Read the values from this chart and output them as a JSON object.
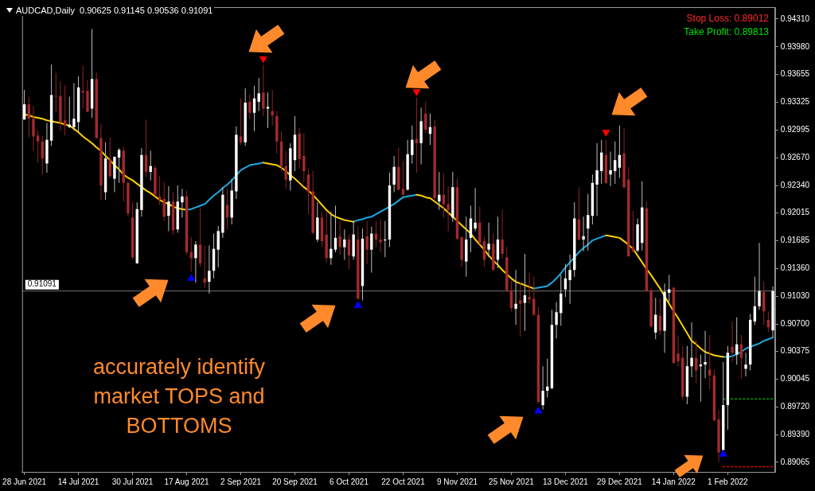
{
  "chart_data": {
    "type": "candlestick",
    "title": "AUDCAD,Daily  0.90625 0.91145 0.90536 0.91091",
    "categories": [
      "28 Jun 2021",
      null,
      null,
      null,
      null,
      null,
      null,
      null,
      null,
      null,
      null,
      null,
      "14 Jul 2021",
      null,
      null,
      null,
      null,
      null,
      null,
      null,
      null,
      null,
      null,
      null,
      "30 Jul 2021",
      null,
      null,
      null,
      null,
      null,
      null,
      null,
      null,
      null,
      null,
      null,
      "17 Aug 2021",
      null,
      null,
      null,
      null,
      null,
      null,
      null,
      null,
      null,
      null,
      null,
      "2 Sep 2021",
      null,
      null,
      null,
      null,
      null,
      null,
      null,
      null,
      null,
      null,
      null,
      "20 Sep 2021",
      null,
      null,
      null,
      null,
      null,
      null,
      null,
      null,
      null,
      null,
      null,
      "6 Oct 2021",
      null,
      null,
      null,
      null,
      null,
      null,
      null,
      null,
      null,
      null,
      null,
      "22 Oct 2021",
      null,
      null,
      null,
      null,
      null,
      null,
      null,
      null,
      null,
      null,
      null,
      "9 Nov 2021",
      null,
      null,
      null,
      null,
      null,
      null,
      null,
      null,
      null,
      null,
      null,
      "25 Nov 2021",
      null,
      null,
      null,
      null,
      null,
      null,
      null,
      null,
      null,
      null,
      null,
      "13 Dec 2021",
      null,
      null,
      null,
      null,
      null,
      null,
      null,
      null,
      null,
      null,
      null,
      "29 Dec 2021",
      null,
      null,
      null,
      null,
      null,
      null,
      null,
      null,
      null,
      null,
      null,
      "14 Jan 2022",
      null,
      null,
      null,
      null,
      null,
      null,
      null,
      null,
      null,
      null,
      null,
      "1 Feb 2022",
      null,
      null,
      null,
      null,
      null,
      null,
      null,
      null,
      null,
      null
    ],
    "ohlc": [
      [
        0.9312,
        0.9347,
        0.9312,
        0.933
      ],
      [
        0.933,
        0.9339,
        0.9291,
        0.9313
      ],
      [
        0.9313,
        0.9328,
        0.9275,
        0.9292
      ],
      [
        0.9293,
        0.9299,
        0.9261,
        0.9286
      ],
      [
        0.9286,
        0.9293,
        0.9247,
        0.9266
      ],
      [
        0.926,
        0.9308,
        0.9249,
        0.9288
      ],
      [
        0.9287,
        0.9377,
        0.9281,
        0.9341
      ],
      [
        0.934,
        0.9367,
        0.9321,
        0.9339
      ],
      [
        0.934,
        0.9357,
        0.9299,
        0.9309
      ],
      [
        0.9311,
        0.9353,
        0.9293,
        0.9305
      ],
      [
        0.9303,
        0.9339,
        0.9302,
        0.9306
      ],
      [
        0.9303,
        0.9355,
        0.9299,
        0.9313
      ],
      [
        0.9309,
        0.9363,
        0.9298,
        0.935
      ],
      [
        0.9346,
        0.9376,
        0.9325,
        0.9344
      ],
      [
        0.9346,
        0.9359,
        0.9321,
        0.9321
      ],
      [
        0.9325,
        0.9419,
        0.9314,
        0.936
      ],
      [
        0.936,
        0.9368,
        0.929,
        0.929
      ],
      [
        0.929,
        0.9306,
        0.9217,
        0.9234
      ],
      [
        0.9226,
        0.9285,
        0.9217,
        0.9266
      ],
      [
        0.9265,
        0.9291,
        0.9243,
        0.9245
      ],
      [
        0.9242,
        0.9268,
        0.9226,
        0.9268
      ],
      [
        0.9267,
        0.9278,
        0.9237,
        0.9276
      ],
      [
        0.9275,
        0.928,
        0.9215,
        0.9237
      ],
      [
        0.9237,
        0.9239,
        0.9197,
        0.9201
      ],
      [
        0.9196,
        0.9214,
        0.9146,
        0.9149
      ],
      [
        0.9142,
        0.9214,
        0.9141,
        0.9206
      ],
      [
        0.9205,
        0.9278,
        0.9197,
        0.927
      ],
      [
        0.927,
        0.9312,
        0.9244,
        0.925
      ],
      [
        0.925,
        0.9275,
        0.924,
        0.9257
      ],
      [
        0.9255,
        0.9258,
        0.9221,
        0.9223
      ],
      [
        0.9221,
        0.9245,
        0.9211,
        0.9217
      ],
      [
        0.9218,
        0.9238,
        0.9192,
        0.9197
      ],
      [
        0.9198,
        0.9233,
        0.918,
        0.9215
      ],
      [
        0.9215,
        0.9226,
        0.9176,
        0.9181
      ],
      [
        0.9182,
        0.9234,
        0.9178,
        0.9215
      ],
      [
        0.9214,
        0.923,
        0.9196,
        0.9221
      ],
      [
        0.9221,
        0.9228,
        0.9152,
        0.9155
      ],
      [
        0.9155,
        0.9173,
        0.9132,
        0.9148
      ],
      [
        0.9148,
        0.9168,
        0.9119,
        0.9164
      ],
      [
        0.9164,
        0.9208,
        0.9138,
        0.9142
      ],
      [
        0.9124,
        0.9163,
        0.9113,
        0.9119
      ],
      [
        0.912,
        0.9163,
        0.9106,
        0.9133
      ],
      [
        0.9133,
        0.9177,
        0.9124,
        0.9159
      ],
      [
        0.9158,
        0.9186,
        0.9137,
        0.918
      ],
      [
        0.9178,
        0.9232,
        0.9172,
        0.9223
      ],
      [
        0.9211,
        0.923,
        0.9182,
        0.9196
      ],
      [
        0.9196,
        0.9242,
        0.9188,
        0.9228
      ],
      [
        0.9227,
        0.9304,
        0.9218,
        0.9294
      ],
      [
        0.9292,
        0.9337,
        0.9282,
        0.9285
      ],
      [
        0.9285,
        0.9349,
        0.9281,
        0.9332
      ],
      [
        0.9333,
        0.9342,
        0.9313,
        0.932
      ],
      [
        0.932,
        0.9352,
        0.9298,
        0.9337
      ],
      [
        0.9333,
        0.9361,
        0.9322,
        0.9343
      ],
      [
        0.9344,
        0.9377,
        0.9316,
        0.9325
      ],
      [
        0.9325,
        0.9344,
        0.9302,
        0.9327
      ],
      [
        0.9322,
        0.9347,
        0.9305,
        0.9317
      ],
      [
        0.9316,
        0.9322,
        0.9272,
        0.9286
      ],
      [
        0.9286,
        0.9298,
        0.9251,
        0.9257
      ],
      [
        0.9257,
        0.9275,
        0.923,
        0.9241
      ],
      [
        0.924,
        0.9284,
        0.9228,
        0.9278
      ],
      [
        0.9264,
        0.9316,
        0.9251,
        0.9294
      ],
      [
        0.9295,
        0.9302,
        0.9254,
        0.9265
      ],
      [
        0.9269,
        0.9296,
        0.9238,
        0.9251
      ],
      [
        0.9247,
        0.9254,
        0.92,
        0.9226
      ],
      [
        0.9227,
        0.9251,
        0.9176,
        0.9178
      ],
      [
        0.917,
        0.9214,
        0.9167,
        0.9196
      ],
      [
        0.9196,
        0.9203,
        0.9161,
        0.9168
      ],
      [
        0.9176,
        0.9203,
        0.9143,
        0.9148
      ],
      [
        0.9148,
        0.9203,
        0.914,
        0.9159
      ],
      [
        0.9158,
        0.921,
        0.9155,
        0.9172
      ],
      [
        0.9174,
        0.9192,
        0.9152,
        0.9161
      ],
      [
        0.9161,
        0.9182,
        0.9146,
        0.917
      ],
      [
        0.917,
        0.9176,
        0.9135,
        0.9151
      ],
      [
        0.915,
        0.9192,
        0.9146,
        0.9176
      ],
      [
        0.917,
        0.9186,
        0.9099,
        0.91
      ],
      [
        0.9115,
        0.9183,
        0.9098,
        0.9171
      ],
      [
        0.9174,
        0.9192,
        0.9141,
        0.9158
      ],
      [
        0.9158,
        0.9185,
        0.9131,
        0.9177
      ],
      [
        0.9177,
        0.9192,
        0.9161,
        0.917
      ],
      [
        0.917,
        0.9194,
        0.9155,
        0.9167
      ],
      [
        0.9169,
        0.9192,
        0.9149,
        0.917
      ],
      [
        0.917,
        0.9249,
        0.9161,
        0.9234
      ],
      [
        0.9235,
        0.9269,
        0.9226,
        0.9256
      ],
      [
        0.9256,
        0.9279,
        0.9228,
        0.9229
      ],
      [
        0.923,
        0.9263,
        0.9221,
        0.9223
      ],
      [
        0.9229,
        0.9288,
        0.9228,
        0.9271
      ],
      [
        0.927,
        0.9305,
        0.926,
        0.9288
      ],
      [
        0.9289,
        0.9338,
        0.9249,
        0.9284
      ],
      [
        0.9284,
        0.9326,
        0.9259,
        0.931
      ],
      [
        0.9319,
        0.9333,
        0.9296,
        0.93
      ],
      [
        0.9295,
        0.9319,
        0.9282,
        0.9303
      ],
      [
        0.9304,
        0.9312,
        0.9217,
        0.9219
      ],
      [
        0.9215,
        0.925,
        0.9205,
        0.9223
      ],
      [
        0.9223,
        0.9248,
        0.9196,
        0.9212
      ],
      [
        0.9212,
        0.9233,
        0.918,
        0.9205
      ],
      [
        0.9196,
        0.925,
        0.9191,
        0.9232
      ],
      [
        0.9232,
        0.9242,
        0.917,
        0.9171
      ],
      [
        0.9173,
        0.9173,
        0.9138,
        0.9146
      ],
      [
        0.9144,
        0.9197,
        0.9126,
        0.917
      ],
      [
        0.9172,
        0.921,
        0.9155,
        0.9195
      ],
      [
        0.9183,
        0.9231,
        0.918,
        0.919
      ],
      [
        0.919,
        0.9209,
        0.9164,
        0.9166
      ],
      [
        0.9168,
        0.9173,
        0.9138,
        0.9146
      ],
      [
        0.9158,
        0.919,
        0.9149,
        0.9165
      ],
      [
        0.9165,
        0.9177,
        0.9133,
        0.9134
      ],
      [
        0.9146,
        0.9197,
        0.9136,
        0.917
      ],
      [
        0.917,
        0.9205,
        0.9147,
        0.9153
      ],
      [
        0.9149,
        0.9161,
        0.9108,
        0.911
      ],
      [
        0.911,
        0.9121,
        0.9085,
        0.9089
      ],
      [
        0.9088,
        0.9134,
        0.9069,
        0.9094
      ],
      [
        0.9098,
        0.9119,
        0.9055,
        0.9094
      ],
      [
        0.9095,
        0.9153,
        0.9062,
        0.9104
      ],
      [
        0.9102,
        0.9131,
        0.9094,
        0.9099
      ],
      [
        0.91,
        0.9126,
        0.908,
        0.9081
      ],
      [
        0.9081,
        0.909,
        0.8976,
        0.8978
      ],
      [
        0.8974,
        0.902,
        0.8969,
        0.8991
      ],
      [
        0.8991,
        0.9029,
        0.8983,
        0.8996
      ],
      [
        0.8994,
        0.9087,
        0.8993,
        0.9069
      ],
      [
        0.9069,
        0.9096,
        0.9053,
        0.9084
      ],
      [
        0.9083,
        0.9128,
        0.9068,
        0.9106
      ],
      [
        0.9111,
        0.9141,
        0.9102,
        0.9124
      ],
      [
        0.9122,
        0.9152,
        0.9094,
        0.9134
      ],
      [
        0.9134,
        0.9214,
        0.9126,
        0.9195
      ],
      [
        0.9194,
        0.9232,
        0.9169,
        0.917
      ],
      [
        0.917,
        0.9197,
        0.9156,
        0.9174
      ],
      [
        0.9183,
        0.9224,
        0.9157,
        0.9199
      ],
      [
        0.9198,
        0.9247,
        0.9188,
        0.9237
      ],
      [
        0.9235,
        0.9284,
        0.9198,
        0.9252
      ],
      [
        0.9251,
        0.9288,
        0.9236,
        0.9273
      ],
      [
        0.927,
        0.9288,
        0.9236,
        0.9237
      ],
      [
        0.9247,
        0.9274,
        0.9233,
        0.9252
      ],
      [
        0.9251,
        0.9286,
        0.9236,
        0.9264
      ],
      [
        0.9255,
        0.9305,
        0.9243,
        0.927
      ],
      [
        0.9272,
        0.9302,
        0.923,
        0.9232
      ],
      [
        0.9241,
        0.9256,
        0.915,
        0.915
      ],
      [
        0.9161,
        0.9204,
        0.9155,
        0.9156
      ],
      [
        0.9157,
        0.9195,
        0.9155,
        0.9188
      ],
      [
        0.9166,
        0.9239,
        0.9157,
        0.9208
      ],
      [
        0.9207,
        0.9215,
        0.9108,
        0.9109
      ],
      [
        0.911,
        0.9112,
        0.9066,
        0.9067
      ],
      [
        0.906,
        0.9101,
        0.9052,
        0.9081
      ],
      [
        0.908,
        0.91,
        0.9057,
        0.9062
      ],
      [
        0.9062,
        0.9118,
        0.9036,
        0.9108
      ],
      [
        0.9107,
        0.9128,
        0.9096,
        0.9111
      ],
      [
        0.9113,
        0.9114,
        0.9023,
        0.9024
      ],
      [
        0.9035,
        0.9056,
        0.902,
        0.9026
      ],
      [
        0.903,
        0.9044,
        0.898,
        0.8984
      ],
      [
        0.8984,
        0.9044,
        0.8975,
        0.902
      ],
      [
        0.902,
        0.9072,
        0.9007,
        0.903
      ],
      [
        0.903,
        0.9051,
        0.9,
        0.9015
      ],
      [
        0.902,
        0.9034,
        0.8978,
        0.9022
      ],
      [
        0.9022,
        0.9062,
        0.9006,
        0.9025
      ],
      [
        0.9016,
        0.9057,
        0.8993,
        0.9009
      ],
      [
        0.9009,
        0.9016,
        0.8955,
        0.8956
      ],
      [
        0.8957,
        0.8968,
        0.8907,
        0.8918
      ],
      [
        0.8921,
        0.9025,
        0.8921,
        0.8974
      ],
      [
        0.8974,
        0.9044,
        0.8945,
        0.9036
      ],
      [
        0.9043,
        0.9073,
        0.9025,
        0.9036
      ],
      [
        0.9034,
        0.9078,
        0.9022,
        0.9046
      ],
      [
        0.9046,
        0.9057,
        0.9005,
        0.903
      ],
      [
        0.9017,
        0.9036,
        0.9008,
        0.9022
      ],
      [
        0.9022,
        0.9082,
        0.9015,
        0.9075
      ],
      [
        0.9073,
        0.9126,
        0.9069,
        0.9091
      ],
      [
        0.9091,
        0.9166,
        0.9087,
        0.9109
      ],
      [
        0.9108,
        0.912,
        0.9069,
        0.9085
      ],
      [
        0.9075,
        0.9085,
        0.9061,
        0.9066
      ],
      [
        0.90625,
        0.91145,
        0.90536,
        0.91091
      ]
    ],
    "series": [
      {
        "type": "line",
        "color": "#ffd000",
        "values": [
          0.9318,
          0.9317,
          0.9315,
          0.9314,
          0.9313,
          0.9311,
          0.931,
          0.9309,
          0.9308,
          0.9306,
          0.9305,
          0.9301,
          0.9297,
          0.9292,
          0.9288,
          0.9284,
          0.9279,
          0.9275,
          0.9269,
          0.9264,
          0.9258,
          0.9253,
          0.9247,
          0.9243,
          0.924,
          0.9236,
          0.9232,
          0.9228,
          0.9225,
          0.9221,
          0.9217,
          0.9214,
          0.9212,
          0.9209,
          0.9207,
          0.9206,
          0.9205,
          null,
          null,
          null,
          null,
          null,
          null,
          null,
          null,
          null,
          null,
          null,
          null,
          null,
          null,
          null,
          null,
          0.9261,
          0.926,
          0.9259,
          0.9258,
          0.9255,
          0.9251,
          0.9246,
          0.9242,
          0.9237,
          0.9232,
          0.9228,
          0.9223,
          0.9217,
          0.9211,
          0.9205,
          0.92,
          0.9197,
          0.9195,
          0.9193,
          0.9192,
          0.9191,
          null,
          null,
          null,
          null,
          null,
          null,
          null,
          null,
          null,
          null,
          null,
          null,
          null,
          0.9223,
          0.9222,
          0.922,
          0.9219,
          0.9215,
          0.9211,
          0.9207,
          0.9202,
          0.9197,
          0.9192,
          0.9187,
          0.9182,
          0.9177,
          0.917,
          0.9164,
          0.9158,
          0.9151,
          0.9145,
          0.914,
          0.9134,
          0.9129,
          0.9124,
          0.912,
          0.9118,
          0.9116,
          0.9114,
          0.9112,
          null,
          null,
          null,
          null,
          null,
          null,
          null,
          null,
          null,
          null,
          null,
          null,
          null,
          null,
          null,
          0.9175,
          0.9174,
          0.9173,
          0.9172,
          0.9168,
          0.9164,
          0.9159,
          0.9151,
          0.9143,
          0.9135,
          0.9128,
          0.912,
          0.9112,
          0.9103,
          0.9094,
          0.9085,
          0.9077,
          0.9068,
          0.9059,
          0.905,
          0.9046,
          0.9041,
          0.9037,
          0.9035,
          0.9033,
          0.9032,
          0.9031,
          null,
          null,
          null,
          null,
          null,
          null,
          null,
          null,
          null,
          null,
          null
        ]
      },
      {
        "type": "line",
        "color": "#1ea8e0",
        "values": [
          null,
          null,
          null,
          null,
          null,
          null,
          null,
          null,
          null,
          null,
          null,
          null,
          null,
          null,
          null,
          null,
          null,
          null,
          null,
          null,
          null,
          null,
          null,
          null,
          null,
          null,
          null,
          null,
          null,
          null,
          null,
          null,
          null,
          null,
          null,
          null,
          0.9205,
          0.9206,
          0.9208,
          0.921,
          0.9212,
          0.9217,
          0.9222,
          0.9226,
          0.9231,
          0.9235,
          0.924,
          0.9246,
          0.9252,
          0.9255,
          0.9258,
          0.9259,
          0.926,
          0.9261,
          null,
          null,
          null,
          null,
          null,
          null,
          null,
          null,
          null,
          null,
          null,
          null,
          null,
          null,
          null,
          null,
          null,
          null,
          null,
          0.9191,
          0.9193,
          0.9194,
          0.9196,
          0.9197,
          0.92,
          0.9203,
          0.9206,
          0.9209,
          0.9212,
          0.9216,
          0.922,
          0.9221,
          0.9222,
          0.9223,
          null,
          null,
          null,
          null,
          null,
          null,
          null,
          null,
          null,
          null,
          null,
          null,
          null,
          null,
          null,
          null,
          null,
          null,
          null,
          null,
          null,
          null,
          null,
          null,
          null,
          0.9112,
          0.9113,
          0.9114,
          0.9115,
          0.9119,
          0.9124,
          0.913,
          0.9137,
          0.9143,
          0.9149,
          0.9155,
          0.916,
          0.9164,
          0.9169,
          0.9171,
          0.9173,
          0.9175,
          null,
          null,
          null,
          null,
          null,
          null,
          null,
          null,
          null,
          null,
          null,
          null,
          null,
          null,
          null,
          null,
          null,
          null,
          null,
          null,
          null,
          null,
          null,
          null,
          null,
          0.9031,
          0.9031,
          0.9032,
          0.9034,
          0.9037,
          0.9041,
          0.9043,
          0.9045,
          0.9047,
          0.905,
          0.9052,
          0.9054
        ]
      },
      {
        "type": "scatter",
        "color": "#ff0000",
        "marker": "triangle",
        "values": [
          null,
          null,
          null,
          null,
          null,
          null,
          null,
          null,
          null,
          null,
          null,
          null,
          null,
          null,
          null,
          null,
          null,
          null,
          null,
          null,
          null,
          null,
          null,
          null,
          null,
          null,
          null,
          null,
          null,
          null,
          null,
          null,
          null,
          null,
          null,
          null,
          null,
          null,
          null,
          null,
          null,
          null,
          null,
          null,
          null,
          null,
          null,
          null,
          null,
          null,
          null,
          null,
          null,
          0.9384,
          null,
          null,
          null,
          null,
          null,
          null,
          null,
          null,
          null,
          null,
          null,
          null,
          null,
          null,
          null,
          null,
          null,
          null,
          null,
          null,
          null,
          null,
          null,
          null,
          null,
          null,
          null,
          null,
          null,
          null,
          null,
          null,
          null,
          0.9345,
          null,
          null,
          null,
          null,
          null,
          null,
          null,
          null,
          null,
          null,
          null,
          null,
          null,
          null,
          null,
          null,
          null,
          null,
          null,
          null,
          null,
          null,
          null,
          null,
          null,
          null,
          null,
          null,
          null,
          null,
          null,
          null,
          null,
          null,
          null,
          null,
          null,
          null,
          null,
          null,
          null,
          0.9297,
          null,
          null,
          null,
          null,
          null,
          null,
          null,
          null,
          null,
          null,
          null,
          null,
          null,
          null,
          null,
          null,
          null,
          null,
          null,
          null,
          null,
          null,
          null,
          null,
          null,
          null,
          null,
          null,
          null,
          null,
          null,
          null,
          null,
          null,
          null,
          null,
          null
        ]
      },
      {
        "type": "scatter",
        "color": "#0000ff",
        "marker": "triangle",
        "values": [
          null,
          null,
          null,
          null,
          null,
          null,
          null,
          null,
          null,
          null,
          null,
          null,
          null,
          null,
          null,
          null,
          null,
          null,
          null,
          null,
          null,
          null,
          null,
          null,
          null,
          null,
          null,
          null,
          null,
          null,
          null,
          null,
          null,
          null,
          null,
          null,
          null,
          0.9124,
          null,
          null,
          null,
          null,
          null,
          null,
          null,
          null,
          null,
          null,
          null,
          null,
          null,
          null,
          null,
          null,
          null,
          null,
          null,
          null,
          null,
          null,
          null,
          null,
          null,
          null,
          null,
          null,
          null,
          null,
          null,
          null,
          null,
          null,
          null,
          null,
          0.9092,
          null,
          null,
          null,
          null,
          null,
          null,
          null,
          null,
          null,
          null,
          null,
          null,
          null,
          null,
          null,
          null,
          null,
          null,
          null,
          null,
          null,
          null,
          null,
          null,
          null,
          null,
          null,
          null,
          null,
          null,
          null,
          null,
          null,
          null,
          null,
          null,
          null,
          null,
          null,
          0.8967,
          null,
          null,
          null,
          null,
          null,
          null,
          null,
          null,
          null,
          null,
          null,
          null,
          null,
          null,
          null,
          null,
          null,
          null,
          null,
          null,
          null,
          null,
          null,
          null,
          null,
          null,
          null,
          null,
          null,
          null,
          null,
          null,
          null,
          null,
          null,
          null,
          null,
          null,
          null,
          null,
          0.8916,
          null,
          null,
          null,
          null,
          null,
          null,
          null,
          null,
          null,
          null,
          null
        ]
      },
      {
        "type": "line",
        "color": "#00a000",
        "line_style": "dotted",
        "values": [
          null,
          null,
          null,
          null,
          null,
          null,
          null,
          null,
          null,
          null,
          null,
          null,
          null,
          null,
          null,
          null,
          null,
          null,
          null,
          null,
          null,
          null,
          null,
          null,
          null,
          null,
          null,
          null,
          null,
          null,
          null,
          null,
          null,
          null,
          null,
          null,
          null,
          null,
          null,
          null,
          null,
          null,
          null,
          null,
          null,
          null,
          null,
          null,
          null,
          null,
          null,
          null,
          null,
          null,
          null,
          null,
          null,
          null,
          null,
          null,
          null,
          null,
          null,
          null,
          null,
          null,
          null,
          null,
          null,
          null,
          null,
          null,
          null,
          null,
          null,
          null,
          null,
          null,
          null,
          null,
          null,
          null,
          null,
          null,
          null,
          null,
          null,
          null,
          null,
          null,
          null,
          null,
          null,
          null,
          null,
          null,
          null,
          null,
          null,
          null,
          null,
          null,
          null,
          null,
          null,
          null,
          null,
          null,
          null,
          null,
          null,
          null,
          null,
          null,
          null,
          null,
          null,
          null,
          null,
          null,
          null,
          null,
          null,
          null,
          null,
          null,
          null,
          null,
          null,
          null,
          null,
          null,
          null,
          null,
          null,
          null,
          null,
          null,
          null,
          null,
          null,
          null,
          null,
          null,
          null,
          null,
          null,
          null,
          null,
          null,
          null,
          null,
          null,
          null,
          null,
          0.89813,
          0.89813,
          0.89813,
          0.89813,
          0.89813,
          0.89813,
          0.89813,
          0.89813,
          0.89813,
          0.89813,
          0.89813,
          0.89813
        ]
      },
      {
        "type": "line",
        "color": "#e00000",
        "line_style": "dotted",
        "values": [
          null,
          null,
          null,
          null,
          null,
          null,
          null,
          null,
          null,
          null,
          null,
          null,
          null,
          null,
          null,
          null,
          null,
          null,
          null,
          null,
          null,
          null,
          null,
          null,
          null,
          null,
          null,
          null,
          null,
          null,
          null,
          null,
          null,
          null,
          null,
          null,
          null,
          null,
          null,
          null,
          null,
          null,
          null,
          null,
          null,
          null,
          null,
          null,
          null,
          null,
          null,
          null,
          null,
          null,
          null,
          null,
          null,
          null,
          null,
          null,
          null,
          null,
          null,
          null,
          null,
          null,
          null,
          null,
          null,
          null,
          null,
          null,
          null,
          null,
          null,
          null,
          null,
          null,
          null,
          null,
          null,
          null,
          null,
          null,
          null,
          null,
          null,
          null,
          null,
          null,
          null,
          null,
          null,
          null,
          null,
          null,
          null,
          null,
          null,
          null,
          null,
          null,
          null,
          null,
          null,
          null,
          null,
          null,
          null,
          null,
          null,
          null,
          null,
          null,
          null,
          null,
          null,
          null,
          null,
          null,
          null,
          null,
          null,
          null,
          null,
          null,
          null,
          null,
          null,
          null,
          null,
          null,
          null,
          null,
          null,
          null,
          null,
          null,
          null,
          null,
          null,
          null,
          null,
          null,
          null,
          null,
          null,
          null,
          null,
          null,
          null,
          null,
          null,
          null,
          null,
          0.89012,
          0.89012,
          0.89012,
          0.89012,
          0.89012,
          0.89012,
          0.89012,
          0.89012,
          0.89012,
          0.89012,
          0.89012,
          0.89012
        ]
      }
    ],
    "ylim": [
      0.8895,
      0.9445
    ],
    "yticks": [
      {
        "value": 0.9431,
        "label": "0.94310"
      },
      {
        "value": 0.9398,
        "label": "0.93980"
      },
      {
        "value": 0.93655,
        "label": "0.93655"
      },
      {
        "value": 0.93325,
        "label": "0.93325"
      },
      {
        "value": 0.92995,
        "label": "0.92995"
      },
      {
        "value": 0.9267,
        "label": "0.92670"
      },
      {
        "value": 0.9234,
        "label": "0.92340"
      },
      {
        "value": 0.92015,
        "label": "0.92015"
      },
      {
        "value": 0.91685,
        "label": "0.91685"
      },
      {
        "value": 0.9136,
        "label": "0.91360"
      },
      {
        "value": 0.9103,
        "label": "0.91030"
      },
      {
        "value": 0.907,
        "label": "0.90700"
      },
      {
        "value": 0.90375,
        "label": "0.90375"
      },
      {
        "value": 0.90045,
        "label": "0.90045"
      },
      {
        "value": 0.8972,
        "label": "0.89720"
      },
      {
        "value": 0.8939,
        "label": "0.89390"
      },
      {
        "value": 0.89065,
        "label": "0.89065"
      }
    ],
    "ref_lines": [
      {
        "axis": "y",
        "value": 0.91091,
        "label": "0.91091",
        "color": "#707070",
        "line_style": "solid"
      }
    ],
    "annotations": [
      "accurately identify market TOPS and BOTTOMS",
      "Stop Loss: 0.89012",
      "Take Profit: 0.89813"
    ],
    "grid": false,
    "legend": false
  }
}
